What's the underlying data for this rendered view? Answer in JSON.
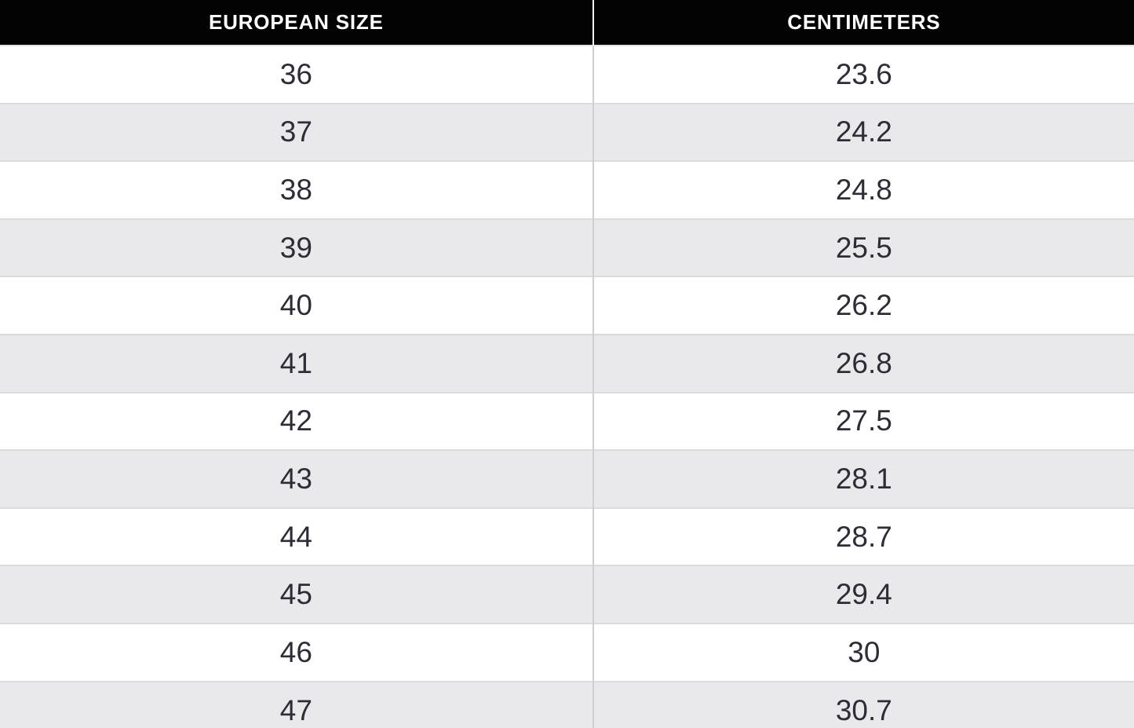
{
  "chart_data": {
    "type": "table",
    "title": "",
    "columns": [
      "EUROPEAN SIZE",
      "CENTIMETERS"
    ],
    "rows": [
      [
        "36",
        "23.6"
      ],
      [
        "37",
        "24.2"
      ],
      [
        "38",
        "24.8"
      ],
      [
        "39",
        "25.5"
      ],
      [
        "40",
        "26.2"
      ],
      [
        "41",
        "26.8"
      ],
      [
        "42",
        "27.5"
      ],
      [
        "43",
        "28.1"
      ],
      [
        "44",
        "28.7"
      ],
      [
        "45",
        "29.4"
      ],
      [
        "46",
        "30"
      ],
      [
        "47",
        "30.7"
      ]
    ]
  },
  "colors": {
    "header_bg": "#030303",
    "header_text": "#ffffff",
    "header_divider": "#ffffff",
    "row_bg": "#ffffff",
    "row_alt_bg": "#e9e9eb",
    "cell_text": "#2d2d36",
    "row_border": "#dbdbdd",
    "column_divider": "#cfcfd1"
  }
}
